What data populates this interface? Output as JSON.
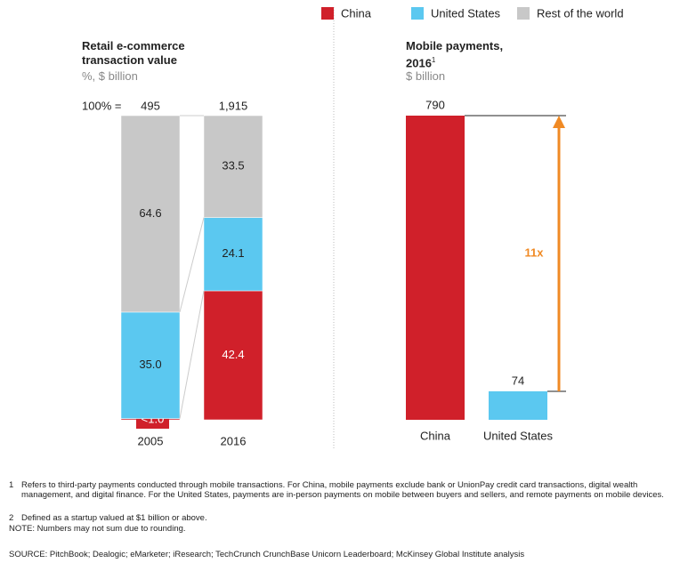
{
  "chart_data": [
    {
      "type": "stacked_bar_100",
      "title": "Retail e-commerce transaction value",
      "subtitle": "%, $ billion",
      "categories": [
        "2005",
        "2016"
      ],
      "total_prefix": "100% =",
      "totals": [
        495,
        1915
      ],
      "total_labels": [
        "495",
        "1,915"
      ],
      "ylim": [
        0,
        100
      ],
      "series": [
        {
          "name": "China",
          "color": "#d0202a",
          "values": [
            0.4,
            42.4
          ],
          "value_labels": [
            "<1.0",
            "42.4"
          ]
        },
        {
          "name": "United States",
          "color": "#5bc8f0",
          "values": [
            35.0,
            24.1
          ],
          "value_labels": [
            "35.0",
            "24.1"
          ]
        },
        {
          "name": "Rest of the world",
          "color": "#c8c8c8",
          "values": [
            64.6,
            33.5
          ],
          "value_labels": [
            "64.6",
            "33.5"
          ]
        }
      ]
    },
    {
      "type": "bar",
      "title": "Mobile payments, 2016",
      "title_note": "1",
      "subtitle": "$ billion",
      "categories": [
        "China",
        "United States"
      ],
      "values": [
        790,
        74
      ],
      "colors": [
        "#d0202a",
        "#5bc8f0"
      ],
      "ylim": [
        0,
        790
      ],
      "annotation": "11x",
      "annotation_color": "#f08a24"
    }
  ],
  "footnotes": [
    {
      "marker": "1",
      "text": "Refers to third-party payments conducted through mobile transactions. For China, mobile payments exclude bank or UnionPay credit card transactions, digital wealth management, and digital finance. For the United States, payments are in-person payments on mobile between buyers and sellers, and remote payments on mobile devices."
    },
    {
      "marker": "2",
      "text": "Defined as a startup valued at $1 billion or above."
    }
  ],
  "note": "NOTE: Numbers may not sum due to rounding.",
  "source": "SOURCE: PitchBook; Dealogic; eMarketer; iResearch; TechCrunch CrunchBase Unicorn Leaderboard; McKinsey Global Institute analysis"
}
